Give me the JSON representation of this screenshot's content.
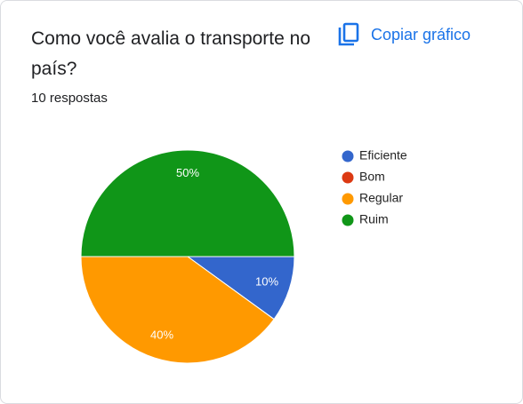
{
  "chart_data": {
    "type": "pie",
    "title": "Como você avalia o transporte no país?",
    "subtitle": "10 respostas",
    "action": "Copiar gráfico",
    "categories": [
      "Eficiente",
      "Bom",
      "Regular",
      "Ruim"
    ],
    "values": [
      10,
      0,
      40,
      50
    ],
    "value_labels": [
      "10%",
      null,
      "40%",
      "50%"
    ],
    "colors": [
      "#3366cc",
      "#dc3912",
      "#ff9900",
      "#109618"
    ],
    "legend": "right"
  }
}
